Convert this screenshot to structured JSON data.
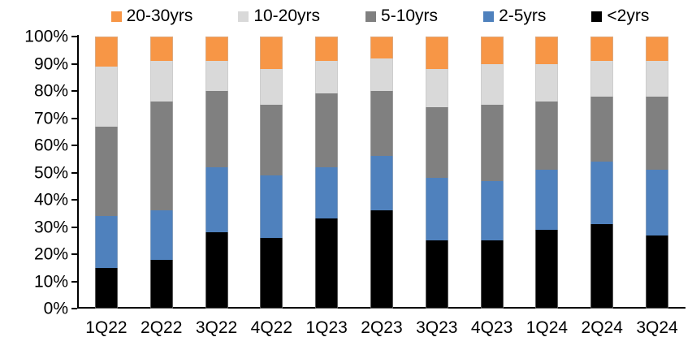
{
  "chart_data": {
    "type": "bar",
    "subtype": "stacked-100-percent",
    "title": "",
    "xlabel": "",
    "ylabel": "",
    "grid": false,
    "legend_position": "top",
    "legend_order": [
      "20-30yrs",
      "10-20yrs",
      "5-10yrs",
      "2-5yrs",
      "<2yrs"
    ],
    "categories": [
      "1Q22",
      "2Q22",
      "3Q22",
      "4Q22",
      "1Q23",
      "2Q23",
      "3Q23",
      "4Q23",
      "1Q24",
      "2Q24",
      "3Q24"
    ],
    "series": [
      {
        "name": "<2yrs",
        "color": "#000000",
        "values": [
          15,
          18,
          28,
          26,
          33,
          36,
          25,
          25,
          29,
          31,
          27
        ]
      },
      {
        "name": "2-5yrs",
        "color": "#4F81BD",
        "values": [
          19,
          18,
          24,
          23,
          19,
          20,
          23,
          22,
          22,
          23,
          24
        ]
      },
      {
        "name": "5-10yrs",
        "color": "#808080",
        "values": [
          33,
          40,
          28,
          26,
          27,
          24,
          26,
          28,
          25,
          24,
          27
        ]
      },
      {
        "name": "10-20yrs",
        "color": "#D9D9D9",
        "values": [
          22,
          15,
          11,
          13,
          12,
          12,
          14,
          15,
          14,
          13,
          13
        ]
      },
      {
        "name": "20-30yrs",
        "color": "#F79646",
        "values": [
          11,
          9,
          9,
          12,
          9,
          8,
          12,
          10,
          10,
          9,
          9
        ]
      }
    ],
    "y_axis": {
      "min": 0,
      "max": 100,
      "step": 10,
      "tick_labels": [
        "0%",
        "10%",
        "20%",
        "30%",
        "40%",
        "50%",
        "60%",
        "70%",
        "80%",
        "90%",
        "100%"
      ]
    },
    "axis_color": "#000000",
    "background_color": "#FFFFFF"
  }
}
